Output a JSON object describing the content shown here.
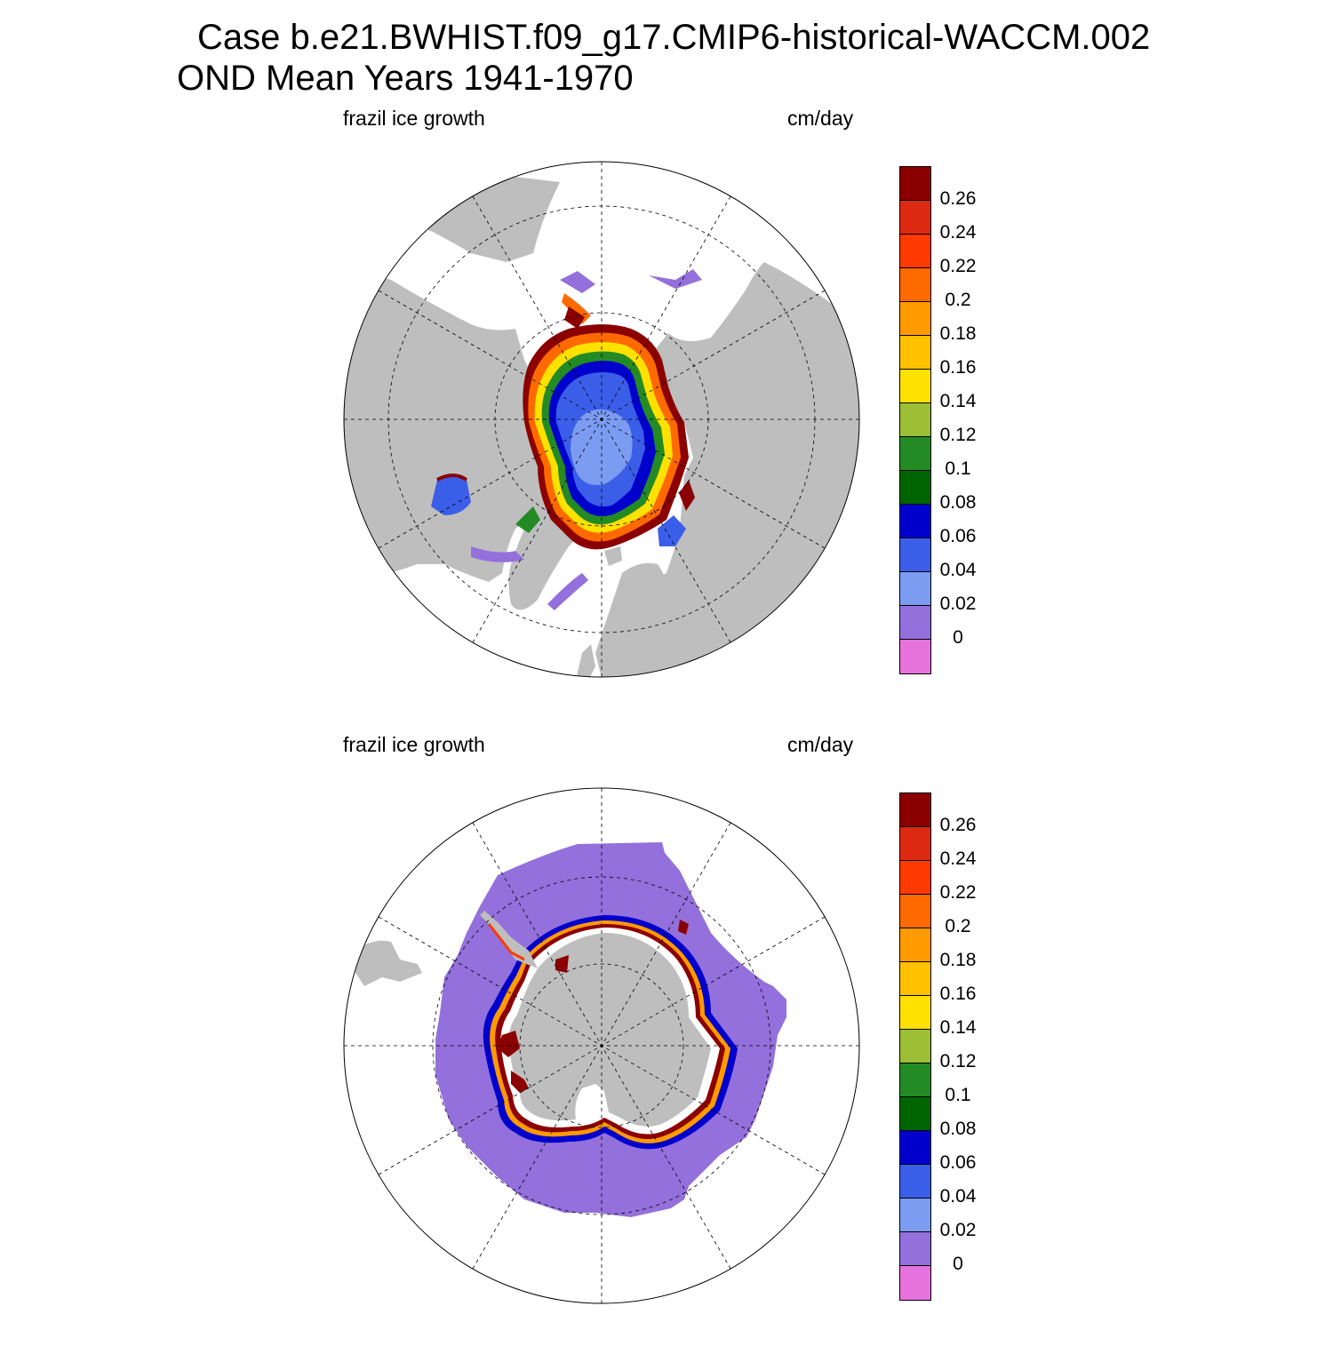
{
  "title": {
    "line1": "Case b.e21.BWHIST.f09_g17.CMIP6-historical-WACCM.002",
    "line2": "OND Mean   Years 1941-1970"
  },
  "panels": [
    {
      "hemisphere": "north",
      "left_label": "frazil ice growth",
      "right_label": "cm/day"
    },
    {
      "hemisphere": "south",
      "left_label": "frazil ice growth",
      "right_label": "cm/day"
    }
  ],
  "colorbar": {
    "colors_top_to_bottom": [
      "#8b0000",
      "#dc2a12",
      "#ff3a00",
      "#ff6a00",
      "#ff9a00",
      "#ffc000",
      "#ffe100",
      "#9cbf36",
      "#248b24",
      "#006400",
      "#0000cd",
      "#3b5ee8",
      "#7c9cf2",
      "#9370db",
      "#e673dd"
    ],
    "tick_labels_top_to_bottom": [
      "0.26",
      "0.24",
      "0.22",
      "0.2",
      "0.18",
      "0.16",
      "0.14",
      "0.12",
      "0.1",
      "0.08",
      "0.06",
      "0.04",
      "0.02",
      "0"
    ]
  },
  "map_colors": {
    "land": "#bebebe",
    "no_data": "#ffffff",
    "grid": "#000000"
  }
}
